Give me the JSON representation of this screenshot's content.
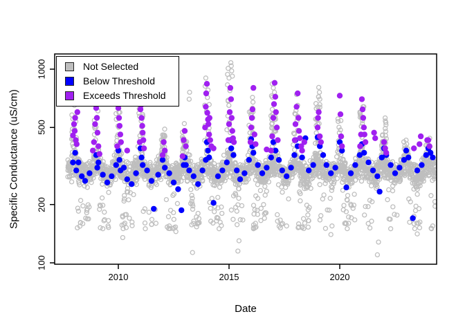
{
  "chart_data": {
    "type": "scatter",
    "title": "",
    "xlabel": "Date",
    "ylabel": "Specific Conductance (uS/cm)",
    "x_ticks": [
      2010,
      2015,
      2020
    ],
    "y_ticks": [
      100,
      200,
      500,
      1000
    ],
    "y_scale": "log",
    "xlim": [
      2007.1,
      2024.4
    ],
    "ylim": [
      98,
      1200
    ],
    "grid": false,
    "background": "#ffffff",
    "box_color": "#000000",
    "legend": {
      "position": "top-left",
      "items": [
        {
          "label": "Not Selected",
          "color": "#BEBEBE",
          "marker": "square"
        },
        {
          "label": "Below Threshold",
          "color": "#0000FF",
          "marker": "square"
        },
        {
          "label": "Exceeds Threshold",
          "color": "#A020F0",
          "marker": "square"
        }
      ]
    },
    "series": [
      {
        "name": "Not Selected",
        "color": "#BEBEBE",
        "marker": "open-circle",
        "cloud_seed": 7,
        "cloud_years": [
          {
            "year": 2008,
            "peak": 580,
            "n": 150
          },
          {
            "year": 2009,
            "peak": 640,
            "n": 170
          },
          {
            "year": 2010,
            "peak": 660,
            "n": 170
          },
          {
            "year": 2011,
            "peak": 630,
            "n": 170
          },
          {
            "year": 2012,
            "peak": 490,
            "n": 170
          },
          {
            "year": 2013,
            "peak": 540,
            "n": 170
          },
          {
            "year": 2014,
            "peak": 820,
            "n": 175
          },
          {
            "year": 2015,
            "peak": 900,
            "n": 175
          },
          {
            "year": 2016,
            "peak": 720,
            "n": 170
          },
          {
            "year": 2017,
            "peak": 800,
            "n": 170
          },
          {
            "year": 2018,
            "peak": 720,
            "n": 170
          },
          {
            "year": 2019,
            "peak": 720,
            "n": 170
          },
          {
            "year": 2020,
            "peak": 580,
            "n": 165
          },
          {
            "year": 2021,
            "peak": 640,
            "n": 165
          },
          {
            "year": 2022,
            "peak": 540,
            "n": 160
          },
          {
            "year": 2023,
            "peak": 430,
            "n": 160
          },
          {
            "year": 2024,
            "peak": 450,
            "n": 150
          }
        ],
        "outliers_high": [
          [
            2008.02,
            650
          ],
          [
            2009.0,
            700
          ],
          [
            2010.05,
            720
          ],
          [
            2013.2,
            700
          ],
          [
            2013.22,
            760
          ],
          [
            2013.95,
            900
          ],
          [
            2014.05,
            780
          ],
          [
            2014.93,
            940
          ],
          [
            2014.96,
            1010
          ],
          [
            2015.0,
            900
          ],
          [
            2015.08,
            1080
          ],
          [
            2015.1,
            1040
          ],
          [
            2015.12,
            980
          ],
          [
            2015.15,
            920
          ],
          [
            2016.95,
            840
          ],
          [
            2017.0,
            800
          ],
          [
            2017.05,
            760
          ],
          [
            2018.05,
            740
          ],
          [
            2019.05,
            805
          ],
          [
            2019.08,
            760
          ],
          [
            2019.1,
            700
          ],
          [
            2021.05,
            640
          ],
          [
            2022.05,
            560
          ],
          [
            2022.08,
            530
          ]
        ],
        "outliers_low": [
          [
            2008.3,
            210
          ],
          [
            2008.6,
            190
          ],
          [
            2009.3,
            150
          ],
          [
            2009.35,
            165
          ],
          [
            2010.2,
            135
          ],
          [
            2010.5,
            170
          ],
          [
            2011.2,
            190
          ],
          [
            2011.7,
            160
          ],
          [
            2012.3,
            155
          ],
          [
            2012.6,
            145
          ],
          [
            2013.35,
            113
          ],
          [
            2013.6,
            180
          ],
          [
            2014.55,
            150
          ],
          [
            2014.6,
            162
          ],
          [
            2015.4,
            115
          ],
          [
            2015.45,
            130
          ],
          [
            2016.6,
            170
          ],
          [
            2017.6,
            155
          ],
          [
            2018.6,
            165
          ],
          [
            2019.6,
            140
          ],
          [
            2019.65,
            155
          ],
          [
            2020.4,
            160
          ],
          [
            2021.7,
            110
          ],
          [
            2021.75,
            128
          ],
          [
            2022.3,
            150
          ],
          [
            2023.5,
            141
          ],
          [
            2023.55,
            160
          ],
          [
            2024.2,
            155
          ]
        ]
      },
      {
        "name": "Below Threshold",
        "color": "#0000FF",
        "marker": "filled-circle",
        "points": [
          [
            2007.95,
            330
          ],
          [
            2008.05,
            370
          ],
          [
            2008.1,
            300
          ],
          [
            2008.2,
            330
          ],
          [
            2008.35,
            280
          ],
          [
            2008.5,
            265
          ],
          [
            2008.7,
            290
          ],
          [
            2009.0,
            360
          ],
          [
            2009.05,
            310
          ],
          [
            2009.1,
            330
          ],
          [
            2009.3,
            285
          ],
          [
            2009.5,
            260
          ],
          [
            2009.7,
            280
          ],
          [
            2009.9,
            320
          ],
          [
            2010.0,
            380
          ],
          [
            2010.05,
            340
          ],
          [
            2010.1,
            300
          ],
          [
            2010.25,
            310
          ],
          [
            2010.4,
            270
          ],
          [
            2010.6,
            255
          ],
          [
            2010.8,
            290
          ],
          [
            2011.0,
            390
          ],
          [
            2011.05,
            350
          ],
          [
            2011.1,
            320
          ],
          [
            2011.3,
            300
          ],
          [
            2011.5,
            265
          ],
          [
            2011.6,
            190
          ],
          [
            2011.8,
            285
          ],
          [
            2012.0,
            340
          ],
          [
            2012.1,
            310
          ],
          [
            2012.3,
            290
          ],
          [
            2012.5,
            260
          ],
          [
            2012.7,
            240
          ],
          [
            2012.85,
            187
          ],
          [
            2012.95,
            320
          ],
          [
            2013.0,
            350
          ],
          [
            2013.05,
            320
          ],
          [
            2013.2,
            300
          ],
          [
            2013.4,
            280
          ],
          [
            2013.6,
            255
          ],
          [
            2013.8,
            300
          ],
          [
            2013.95,
            340
          ],
          [
            2014.0,
            420
          ],
          [
            2014.05,
            380
          ],
          [
            2014.1,
            350
          ],
          [
            2014.3,
            204
          ],
          [
            2014.5,
            280
          ],
          [
            2014.7,
            300
          ],
          [
            2014.9,
            330
          ],
          [
            2015.05,
            430
          ],
          [
            2015.1,
            390
          ],
          [
            2015.2,
            360
          ],
          [
            2015.35,
            300
          ],
          [
            2015.5,
            270
          ],
          [
            2015.7,
            290
          ],
          [
            2015.9,
            340
          ],
          [
            2016.0,
            435
          ],
          [
            2016.05,
            400
          ],
          [
            2016.1,
            370
          ],
          [
            2016.3,
            320
          ],
          [
            2016.5,
            290
          ],
          [
            2016.7,
            310
          ],
          [
            2016.9,
            350
          ],
          [
            2017.0,
            420
          ],
          [
            2017.1,
            380
          ],
          [
            2017.25,
            340
          ],
          [
            2017.4,
            300
          ],
          [
            2017.6,
            280
          ],
          [
            2017.8,
            310
          ],
          [
            2017.95,
            360
          ],
          [
            2018.0,
            430
          ],
          [
            2018.1,
            400
          ],
          [
            2018.3,
            350
          ],
          [
            2018.45,
            440
          ],
          [
            2018.6,
            300
          ],
          [
            2018.8,
            320
          ],
          [
            2019.0,
            445
          ],
          [
            2019.1,
            400
          ],
          [
            2019.25,
            360
          ],
          [
            2019.4,
            320
          ],
          [
            2019.6,
            290
          ],
          [
            2019.8,
            310
          ],
          [
            2020.0,
            420
          ],
          [
            2020.1,
            380
          ],
          [
            2020.3,
            245
          ],
          [
            2020.5,
            290
          ],
          [
            2020.7,
            320
          ],
          [
            2020.9,
            360
          ],
          [
            2021.0,
            410
          ],
          [
            2021.1,
            370
          ],
          [
            2021.3,
            330
          ],
          [
            2021.5,
            300
          ],
          [
            2021.7,
            280
          ],
          [
            2021.8,
            233
          ],
          [
            2021.9,
            350
          ],
          [
            2022.0,
            390
          ],
          [
            2022.1,
            360
          ],
          [
            2022.3,
            320
          ],
          [
            2022.5,
            290
          ],
          [
            2022.7,
            310
          ],
          [
            2022.9,
            340
          ],
          [
            2023.0,
            380
          ],
          [
            2023.1,
            350
          ],
          [
            2023.3,
            170
          ],
          [
            2023.5,
            300
          ],
          [
            2023.7,
            320
          ],
          [
            2023.9,
            360
          ],
          [
            2024.0,
            390
          ],
          [
            2024.1,
            370
          ],
          [
            2024.2,
            350
          ]
        ]
      },
      {
        "name": "Exceeds Threshold",
        "color": "#A020F0",
        "marker": "filled-circle",
        "points": [
          [
            2007.95,
            455
          ],
          [
            2008.0,
            520
          ],
          [
            2008.03,
            480
          ],
          [
            2008.05,
            560
          ],
          [
            2008.08,
            430
          ],
          [
            2008.12,
            410
          ],
          [
            2008.15,
            600
          ],
          [
            2008.85,
            380
          ],
          [
            2008.9,
            420
          ],
          [
            2008.95,
            520
          ],
          [
            2009.0,
            630
          ],
          [
            2009.03,
            560
          ],
          [
            2009.06,
            470
          ],
          [
            2009.1,
            400
          ],
          [
            2009.15,
            365
          ],
          [
            2009.95,
            400
          ],
          [
            2010.0,
            630
          ],
          [
            2010.03,
            560
          ],
          [
            2010.06,
            510
          ],
          [
            2010.09,
            460
          ],
          [
            2010.12,
            420
          ],
          [
            2010.4,
            380
          ],
          [
            2010.97,
            420
          ],
          [
            2011.0,
            620
          ],
          [
            2011.02,
            650
          ],
          [
            2011.05,
            560
          ],
          [
            2011.08,
            510
          ],
          [
            2011.1,
            470
          ],
          [
            2011.13,
            430
          ],
          [
            2011.16,
            390
          ],
          [
            2012.0,
            360
          ],
          [
            2012.05,
            420
          ],
          [
            2012.1,
            380
          ],
          [
            2012.9,
            355
          ],
          [
            2012.95,
            430
          ],
          [
            2013.0,
            480
          ],
          [
            2013.05,
            400
          ],
          [
            2013.92,
            500
          ],
          [
            2013.95,
            640
          ],
          [
            2013.97,
            750
          ],
          [
            2014.0,
            840
          ],
          [
            2014.02,
            595
          ],
          [
            2014.05,
            550
          ],
          [
            2014.07,
            520
          ],
          [
            2014.1,
            460
          ],
          [
            2014.12,
            560
          ],
          [
            2014.15,
            430
          ],
          [
            2014.2,
            400
          ],
          [
            2014.3,
            390
          ],
          [
            2014.97,
            430
          ],
          [
            2015.0,
            520
          ],
          [
            2015.03,
            600
          ],
          [
            2015.06,
            800
          ],
          [
            2015.09,
            700
          ],
          [
            2015.12,
            560
          ],
          [
            2015.15,
            480
          ],
          [
            2015.18,
            440
          ],
          [
            2015.22,
            420
          ],
          [
            2015.97,
            420
          ],
          [
            2016.0,
            500
          ],
          [
            2016.03,
            560
          ],
          [
            2016.06,
            620
          ],
          [
            2016.1,
            800
          ],
          [
            2016.15,
            460
          ],
          [
            2016.2,
            410
          ],
          [
            2016.7,
            385
          ],
          [
            2016.9,
            380
          ],
          [
            2016.95,
            450
          ],
          [
            2017.0,
            560
          ],
          [
            2017.03,
            660
          ],
          [
            2017.06,
            850
          ],
          [
            2017.09,
            720
          ],
          [
            2017.12,
            600
          ],
          [
            2017.16,
            500
          ],
          [
            2017.2,
            430
          ],
          [
            2017.97,
            430
          ],
          [
            2018.0,
            520
          ],
          [
            2018.05,
            640
          ],
          [
            2018.1,
            750
          ],
          [
            2018.13,
            560
          ],
          [
            2018.16,
            480
          ],
          [
            2018.2,
            440
          ],
          [
            2018.26,
            400
          ],
          [
            2018.3,
            380
          ],
          [
            2018.4,
            420
          ],
          [
            2019.0,
            500
          ],
          [
            2019.02,
            560
          ],
          [
            2019.05,
            600
          ],
          [
            2019.1,
            450
          ],
          [
            2019.15,
            420
          ],
          [
            2020.0,
            730
          ],
          [
            2020.03,
            585
          ],
          [
            2020.06,
            450
          ],
          [
            2020.1,
            400
          ],
          [
            2020.92,
            400
          ],
          [
            2020.96,
            460
          ],
          [
            2021.0,
            700
          ],
          [
            2021.03,
            620
          ],
          [
            2021.06,
            560
          ],
          [
            2021.09,
            500
          ],
          [
            2021.12,
            460
          ],
          [
            2021.16,
            420
          ],
          [
            2021.55,
            470
          ],
          [
            2021.6,
            440
          ],
          [
            2022.0,
            420
          ],
          [
            2022.05,
            390
          ],
          [
            2022.1,
            370
          ],
          [
            2023.35,
            390
          ],
          [
            2023.6,
            410
          ],
          [
            2023.66,
            450
          ],
          [
            2023.95,
            430
          ],
          [
            2024.0,
            430
          ],
          [
            2024.05,
            400
          ]
        ]
      }
    ]
  }
}
